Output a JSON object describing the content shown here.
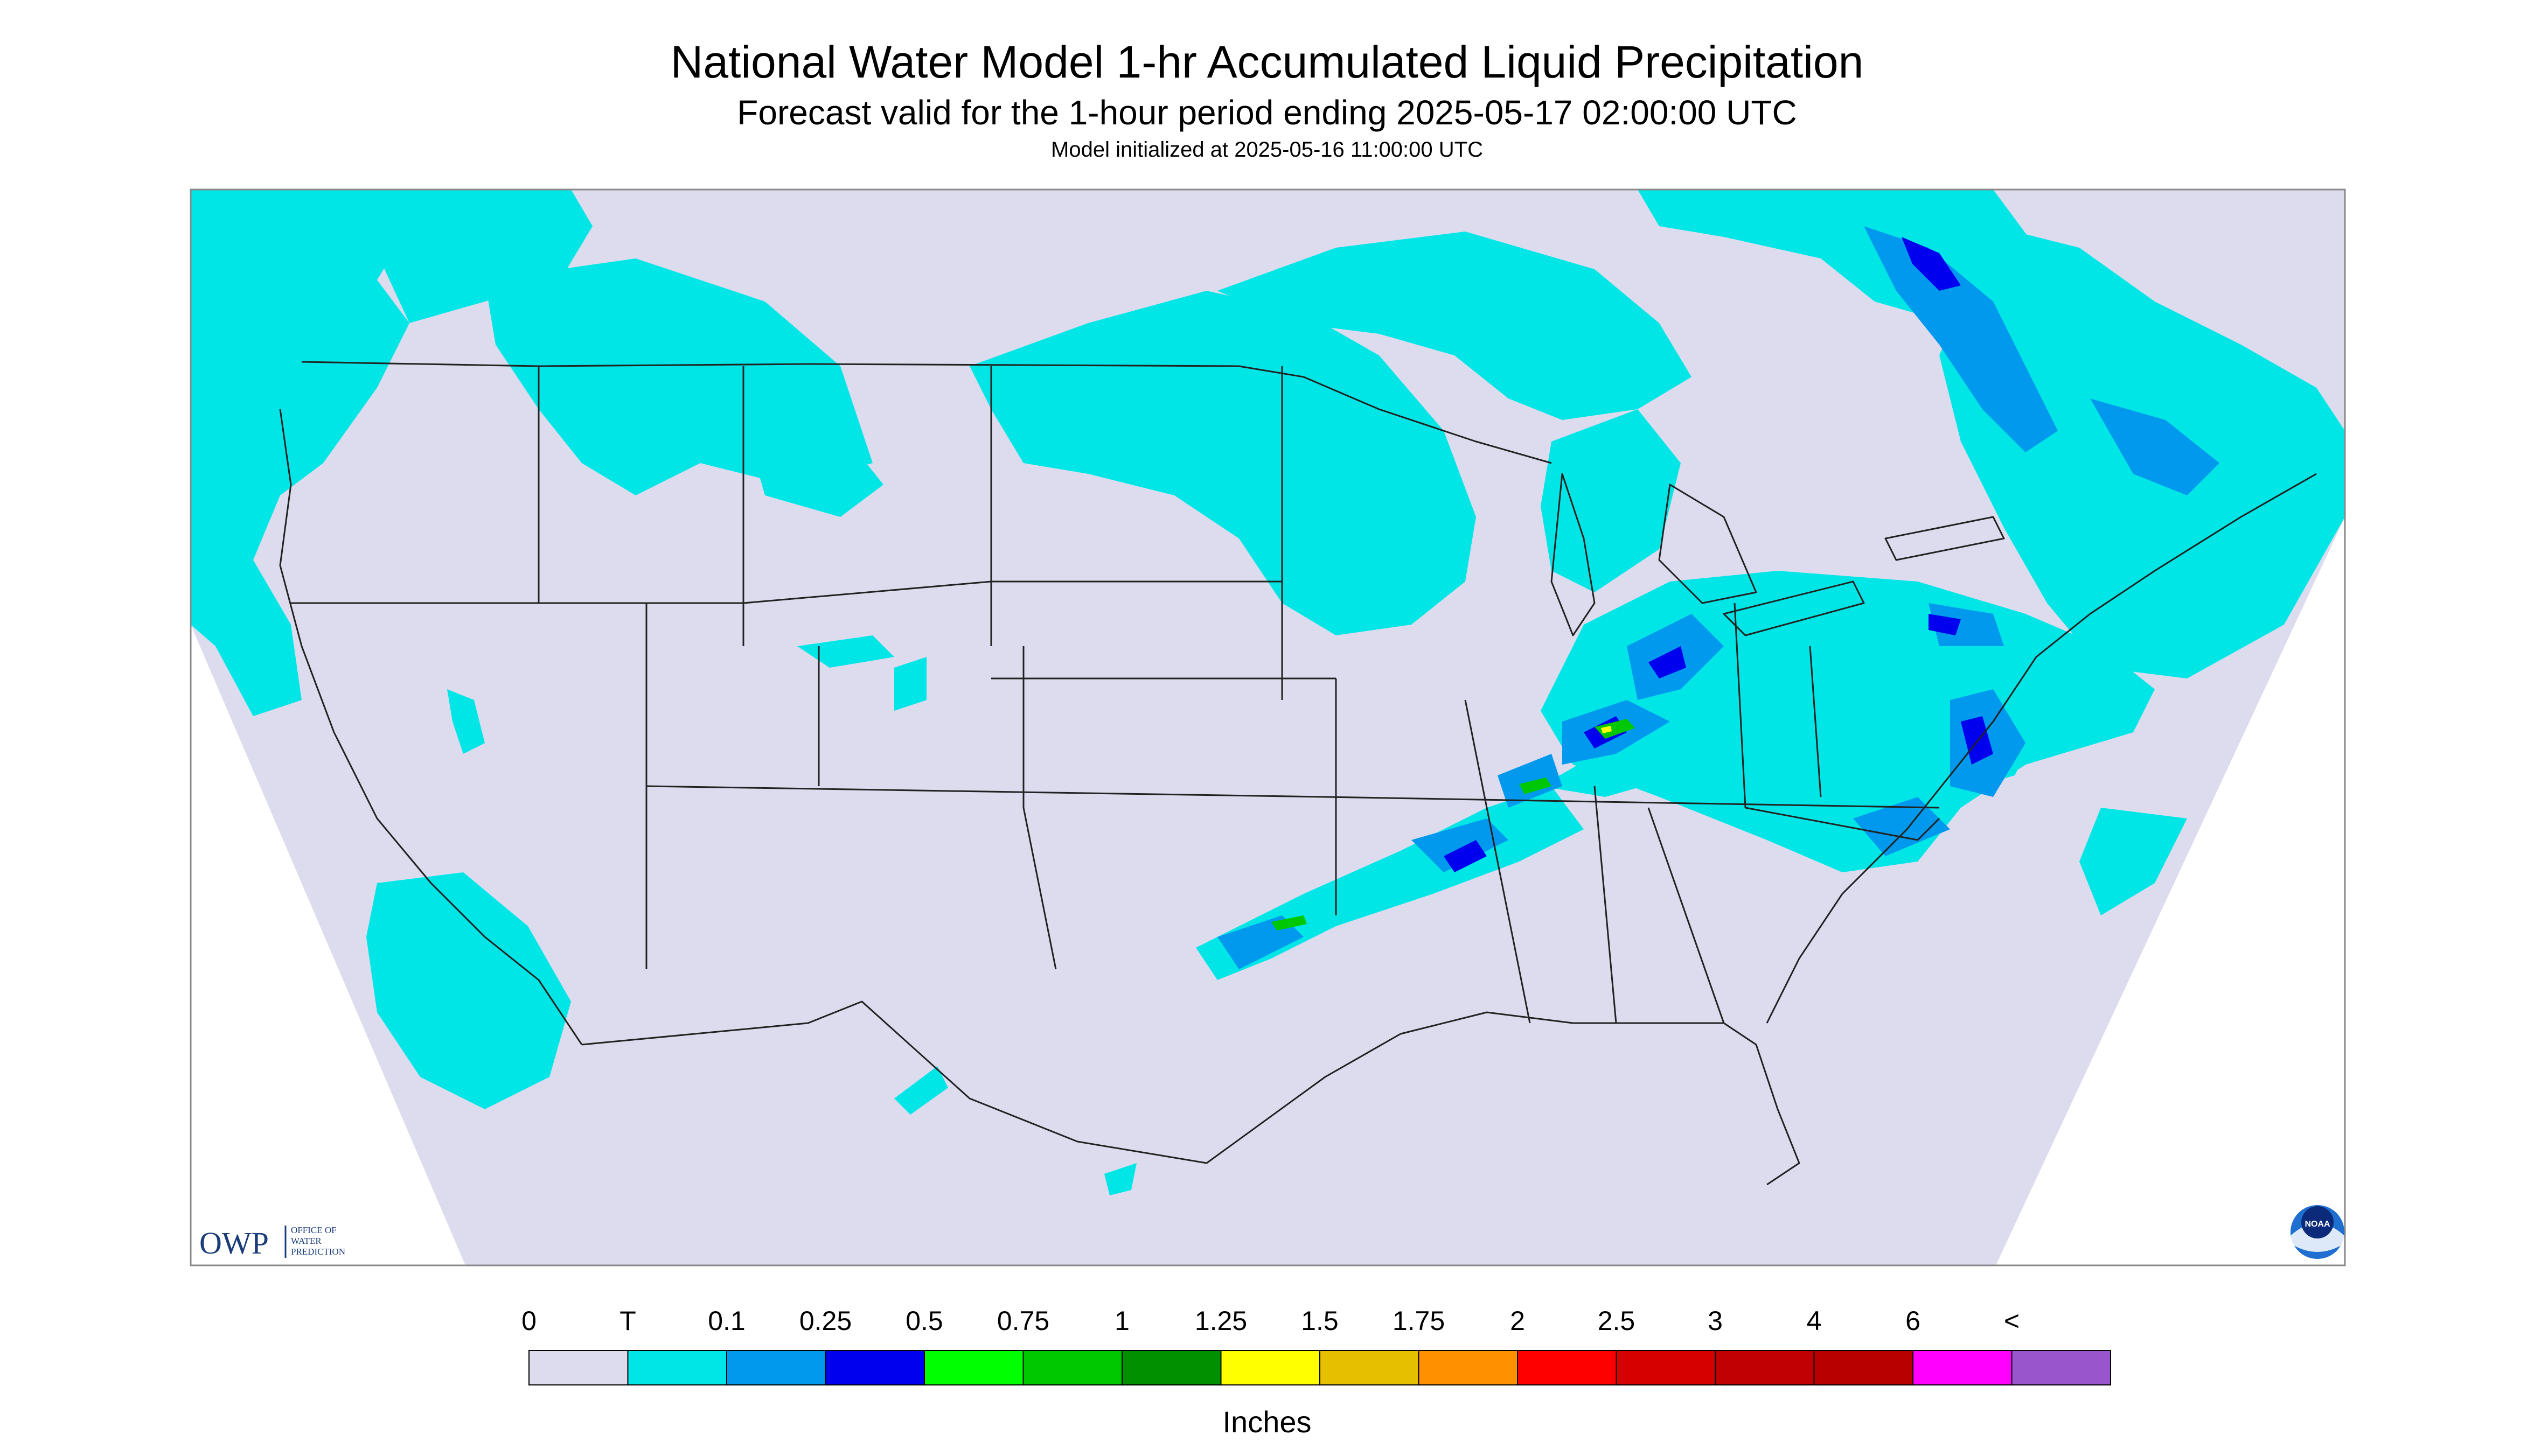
{
  "title": "National Water Model 1-hr Accumulated Liquid Precipitation",
  "subtitle": "Forecast valid for the 1-hour period ending 2025-05-17 02:00:00 UTC",
  "init_line": "Model initialized at 2025-05-16 11:00:00 UTC",
  "logo_owp": {
    "abbrev": "OWP",
    "line1": "OFFICE OF",
    "line2": "WATER",
    "line3": "PREDICTION"
  },
  "logo_noaa": "NOAA",
  "legend": {
    "labels": [
      "0",
      "T",
      "0.1",
      "0.25",
      "0.5",
      "0.75",
      "1",
      "1.25",
      "1.5",
      "1.75",
      "2",
      "2.5",
      "3",
      "4",
      "6",
      "<"
    ],
    "colors": [
      "#dcdcee",
      "#00e6e6",
      "#0099ee",
      "#0000ee",
      "#00ff00",
      "#00c800",
      "#009000",
      "#ffff00",
      "#e6c000",
      "#ff9000",
      "#ff0000",
      "#d60000",
      "#c00000",
      "#b80000",
      "#ff00ff",
      "#9955cc"
    ],
    "units": "Inches"
  },
  "colors": {
    "no_data": "#ffffff",
    "background": "#dcdcee",
    "trace": "#00e6e6",
    "light": "#0099ee",
    "moderate": "#0000ee",
    "heavy_green": "#00c800",
    "heavy_yellow": "#ffff00"
  }
}
